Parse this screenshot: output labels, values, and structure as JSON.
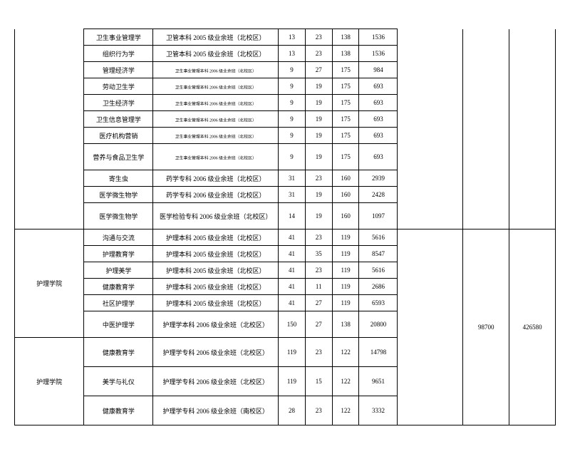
{
  "rows": [
    {
      "course": "卫生事业管理学",
      "class": "卫管本科 2005 级业余班（北校区）",
      "n1": "13",
      "n2": "23",
      "n3": "138",
      "n4": "1536",
      "small": false
    },
    {
      "course": "组织行为学",
      "class": "卫管本科 2005 级业余班（北校区）",
      "n1": "13",
      "n2": "23",
      "n3": "138",
      "n4": "1536",
      "small": false
    },
    {
      "course": "管理经济学",
      "class": "卫生事业管理本科 2006 级业余班（北校区）",
      "n1": "9",
      "n2": "27",
      "n3": "175",
      "n4": "984",
      "small": true
    },
    {
      "course": "劳动卫生学",
      "class": "卫生事业管理本科 2006 级业余班（北校区）",
      "n1": "9",
      "n2": "19",
      "n3": "175",
      "n4": "693",
      "small": true
    },
    {
      "course": "卫生经济学",
      "class": "卫生事业管理本科 2006 级业余班（北校区）",
      "n1": "9",
      "n2": "19",
      "n3": "175",
      "n4": "693",
      "small": true
    },
    {
      "course": "卫生信息管理学",
      "class": "卫生事业管理本科 2006 级业余班（北校区）",
      "n1": "9",
      "n2": "19",
      "n3": "175",
      "n4": "693",
      "small": true
    },
    {
      "course": "医疗机构营销",
      "class": "卫生事业管理本科 2006 级业余班（北校区）",
      "n1": "9",
      "n2": "19",
      "n3": "175",
      "n4": "693",
      "small": true
    },
    {
      "course": "营养与食品卫生学",
      "class": "卫生事业管理本科 2006 级业余班（北校区）",
      "n1": "9",
      "n2": "19",
      "n3": "175",
      "n4": "693",
      "small": true,
      "tall": true
    },
    {
      "course": "寄生虫",
      "class": "药学专科 2006 级业余班（北校区）",
      "n1": "31",
      "n2": "23",
      "n3": "160",
      "n4": "2939",
      "small": false
    },
    {
      "course": "医学微生物学",
      "class": "药学专科 2006 级业余班（北校区）",
      "n1": "31",
      "n2": "19",
      "n3": "160",
      "n4": "2428",
      "small": false
    },
    {
      "course": "医学微生物学",
      "class": "医学检验专科 2006 级业余班（北校区）",
      "n1": "14",
      "n2": "19",
      "n3": "160",
      "n4": "1097",
      "small": false,
      "tall": true
    }
  ],
  "group2": {
    "dept": "护理学院",
    "total1": "98700",
    "total2": "426580",
    "rows": [
      {
        "course": "沟通与交流",
        "class": "护理本科 2005 级业余班（北校区）",
        "n1": "41",
        "n2": "23",
        "n3": "119",
        "n4": "5616"
      },
      {
        "course": "护理教育学",
        "class": "护理本科 2005 级业余班（北校区）",
        "n1": "41",
        "n2": "35",
        "n3": "119",
        "n4": "8547"
      },
      {
        "course": "护理美学",
        "class": "护理本科 2005 级业余班（北校区）",
        "n1": "41",
        "n2": "23",
        "n3": "119",
        "n4": "5616"
      },
      {
        "course": "健康教育学",
        "class": "护理本科 2005 级业余班（北校区）",
        "n1": "41",
        "n2": "11",
        "n3": "119",
        "n4": "2686"
      },
      {
        "course": "社区护理学",
        "class": "护理本科 2005 级业余班（北校区）",
        "n1": "41",
        "n2": "27",
        "n3": "119",
        "n4": "6593"
      },
      {
        "course": "中医护理学",
        "class": "护理学本科 2006 级业余班（北校区）",
        "n1": "150",
        "n2": "27",
        "n3": "138",
        "n4": "20800",
        "tall": true
      }
    ]
  },
  "group3": {
    "dept": "护理学院",
    "rows": [
      {
        "course": "健康教育学",
        "class": "护理学专科 2006 级业余班（北校区）",
        "n1": "119",
        "n2": "23",
        "n3": "122",
        "n4": "14798",
        "tall": true
      },
      {
        "course": "美学与礼仪",
        "class": "护理学专科 2006 级业余班（北校区）",
        "n1": "119",
        "n2": "15",
        "n3": "122",
        "n4": "9651",
        "tall": true
      },
      {
        "course": "健康教育学",
        "class": "护理学专科 2006 级业余班（南校区）",
        "n1": "28",
        "n2": "23",
        "n3": "122",
        "n4": "3332",
        "tall": true
      }
    ]
  }
}
